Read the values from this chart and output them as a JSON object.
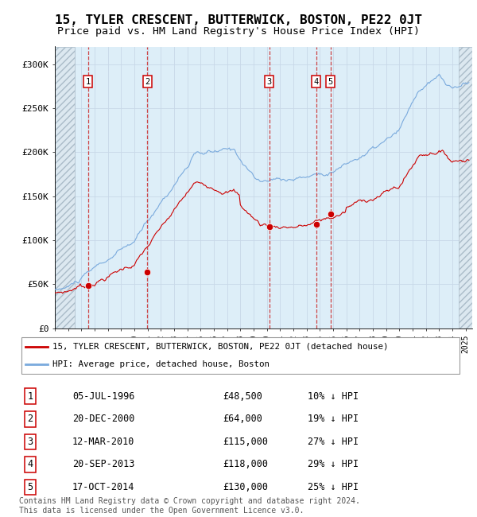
{
  "title": "15, TYLER CRESCENT, BUTTERWICK, BOSTON, PE22 0JT",
  "subtitle": "Price paid vs. HM Land Registry's House Price Index (HPI)",
  "xlim_start": 1994.0,
  "xlim_end": 2025.5,
  "ylim": [
    0,
    320000
  ],
  "yticks": [
    0,
    50000,
    100000,
    150000,
    200000,
    250000,
    300000
  ],
  "ytick_labels": [
    "£0",
    "£50K",
    "£100K",
    "£150K",
    "£200K",
    "£250K",
    "£300K"
  ],
  "sale_dates": [
    1996.51,
    2000.97,
    2010.19,
    2013.72,
    2014.79
  ],
  "sale_prices": [
    48500,
    64000,
    115000,
    118000,
    130000
  ],
  "sale_labels": [
    "1",
    "2",
    "3",
    "4",
    "5"
  ],
  "hpi_color": "#7aaadd",
  "sale_color": "#cc0000",
  "dashed_line_color": "#cc3333",
  "legend_entries": [
    "15, TYLER CRESCENT, BUTTERWICK, BOSTON, PE22 0JT (detached house)",
    "HPI: Average price, detached house, Boston"
  ],
  "table_rows": [
    [
      "1",
      "05-JUL-1996",
      "£48,500",
      "10% ↓ HPI"
    ],
    [
      "2",
      "20-DEC-2000",
      "£64,000",
      "19% ↓ HPI"
    ],
    [
      "3",
      "12-MAR-2010",
      "£115,000",
      "27% ↓ HPI"
    ],
    [
      "4",
      "20-SEP-2013",
      "£118,000",
      "29% ↓ HPI"
    ],
    [
      "5",
      "17-OCT-2014",
      "£130,000",
      "25% ↓ HPI"
    ]
  ],
  "footer": "Contains HM Land Registry data © Crown copyright and database right 2024.\nThis data is licensed under the Open Government Licence v3.0.",
  "hatch_region_end": 1995.5,
  "hatch_region_start2": 2024.5,
  "background_hatch_color": "#dce8f0",
  "chart_bg_color": "#ddeef8",
  "grid_color": "#c8d8e8"
}
